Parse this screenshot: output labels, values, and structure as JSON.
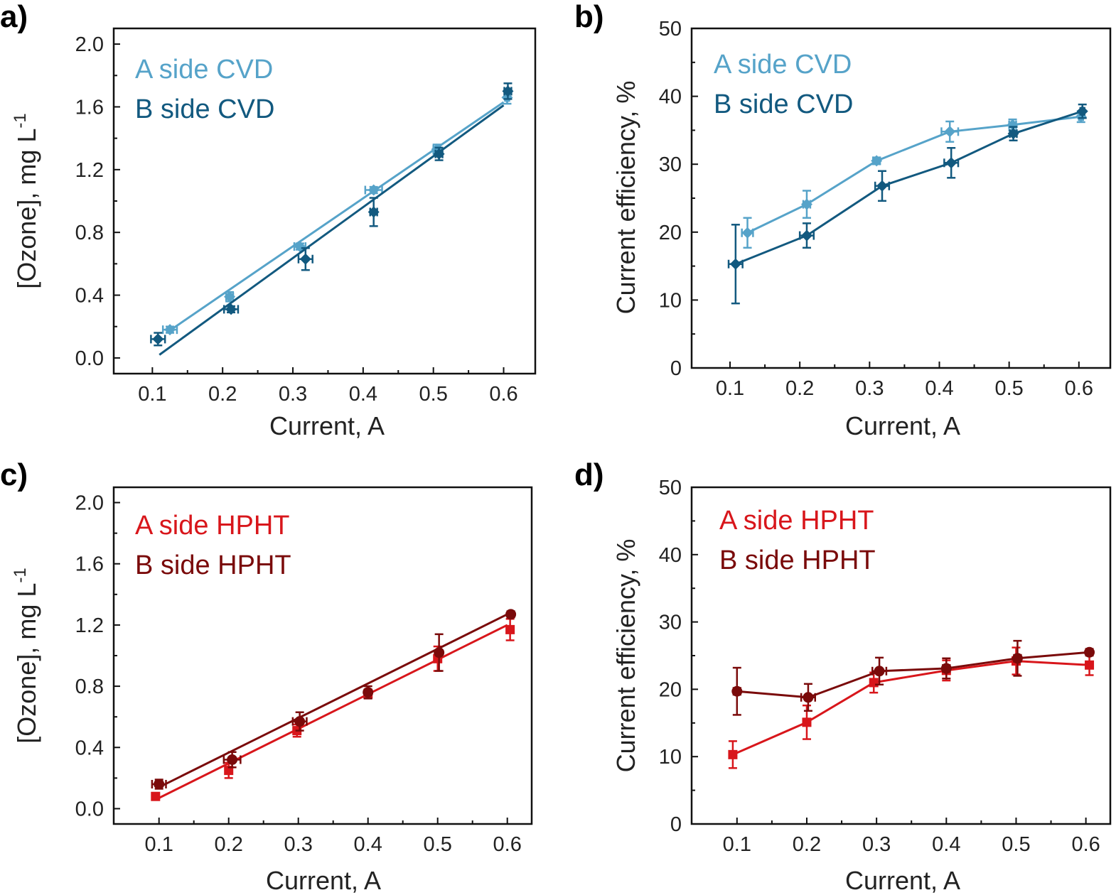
{
  "chart_data": [
    {
      "panel": "a)",
      "type": "line",
      "xlabel": "Current, A",
      "ylabel": "[Ozone], mg L",
      "ylabel_sup": "-1",
      "xlim": [
        0.045,
        0.645
      ],
      "ylim": [
        -0.1,
        2.1
      ],
      "xticks": [
        "0.1",
        "0.2",
        "0.3",
        "0.4",
        "0.5",
        "0.6"
      ],
      "yticks": [
        "0.0",
        "0.4",
        "0.8",
        "1.2",
        "1.6",
        "2.0"
      ],
      "legend": "top-left",
      "series": [
        {
          "name": "A side CVD",
          "color": "#56a3c9",
          "marker": "diamond",
          "connect": "fit",
          "fit": [
            [
              0.12,
              0.16
            ],
            [
              0.6,
              1.63
            ]
          ],
          "x": [
            0.125,
            0.21,
            0.31,
            0.415,
            0.505,
            0.605
          ],
          "y": [
            0.18,
            0.39,
            0.71,
            1.07,
            1.33,
            1.66
          ],
          "xerr": [
            0.01,
            0.005,
            0.008,
            0.012,
            0.005,
            0.003
          ],
          "yerr": [
            0.02,
            0.03,
            0.02,
            0.02,
            0.03,
            0.04
          ]
        },
        {
          "name": "B side CVD",
          "color": "#12597f",
          "marker": "diamond",
          "connect": "fit",
          "fit": [
            [
              0.11,
              0.02
            ],
            [
              0.6,
              1.61
            ]
          ],
          "x": [
            0.108,
            0.212,
            0.318,
            0.415,
            0.508,
            0.606
          ],
          "y": [
            0.12,
            0.31,
            0.63,
            0.93,
            1.3,
            1.7
          ],
          "xerr": [
            0.01,
            0.01,
            0.01,
            0.005,
            0.005,
            0.005
          ],
          "yerr": [
            0.04,
            0.02,
            0.07,
            0.09,
            0.04,
            0.05
          ]
        }
      ]
    },
    {
      "panel": "b)",
      "type": "line",
      "xlabel": "Current, A",
      "ylabel": "Current efficiency, %",
      "ylabel_sup": "",
      "xlim": [
        0.045,
        0.645
      ],
      "ylim": [
        0,
        50
      ],
      "xticks": [
        "0.1",
        "0.2",
        "0.3",
        "0.4",
        "0.5",
        "0.6"
      ],
      "yticks": [
        "0",
        "10",
        "20",
        "30",
        "40",
        "50"
      ],
      "legend": "top-left",
      "series": [
        {
          "name": "A side CVD",
          "color": "#56a3c9",
          "marker": "diamond",
          "connect": "points",
          "x": [
            0.125,
            0.21,
            0.31,
            0.415,
            0.505,
            0.603
          ],
          "y": [
            19.9,
            24.1,
            30.5,
            34.8,
            35.8,
            37.0
          ],
          "xerr": [
            0.008,
            0.005,
            0.005,
            0.012,
            0.005,
            0.003
          ],
          "yerr": [
            2.2,
            2.0,
            0.5,
            1.5,
            0.8,
            0.8
          ]
        },
        {
          "name": "B side CVD",
          "color": "#12597f",
          "marker": "diamond",
          "connect": "points",
          "x": [
            0.108,
            0.21,
            0.318,
            0.417,
            0.506,
            0.605
          ],
          "y": [
            15.3,
            19.5,
            26.8,
            30.2,
            34.5,
            37.8
          ],
          "xerr": [
            0.01,
            0.01,
            0.01,
            0.01,
            0.005,
            0.003
          ],
          "yerr": [
            5.8,
            1.8,
            2.2,
            2.2,
            1.0,
            1.0
          ]
        }
      ]
    },
    {
      "panel": "c)",
      "type": "line",
      "xlabel": "Current, A",
      "ylabel": "[Ozone], mg L",
      "ylabel_sup": "-1",
      "xlim": [
        0.035,
        0.635
      ],
      "ylim": [
        -0.1,
        2.1
      ],
      "xticks": [
        "0.1",
        "0.2",
        "0.3",
        "0.4",
        "0.5",
        "0.6"
      ],
      "yticks": [
        "0.0",
        "0.4",
        "0.8",
        "1.2",
        "1.6",
        "2.0"
      ],
      "legend": "top-left",
      "series": [
        {
          "name": "A side HPHT",
          "color": "#d8161b",
          "marker": "square",
          "connect": "fit",
          "fit": [
            [
              0.1,
              0.07
            ],
            [
              0.6,
              1.2
            ]
          ],
          "x": [
            0.095,
            0.2,
            0.298,
            0.4,
            0.5,
            0.604
          ],
          "y": [
            0.08,
            0.25,
            0.51,
            0.75,
            0.98,
            1.17
          ],
          "xerr": [
            0.003,
            0.003,
            0.005,
            0.005,
            0.003,
            0.003
          ],
          "yerr": [
            0.02,
            0.05,
            0.04,
            0.03,
            0.08,
            0.07
          ]
        },
        {
          "name": "B side HPHT",
          "color": "#7a0a0a",
          "marker": "circle",
          "connect": "fit",
          "fit": [
            [
              0.1,
              0.14
            ],
            [
              0.6,
              1.27
            ]
          ],
          "x": [
            0.1,
            0.205,
            0.302,
            0.4,
            0.502,
            0.605
          ],
          "y": [
            0.16,
            0.32,
            0.57,
            0.76,
            1.02,
            1.27
          ],
          "xerr": [
            0.01,
            0.012,
            0.01,
            0.003,
            0.003,
            0.003
          ],
          "yerr": [
            0.03,
            0.05,
            0.06,
            0.04,
            0.12,
            0.02
          ]
        }
      ]
    },
    {
      "panel": "d)",
      "type": "line",
      "xlabel": "Current, A",
      "ylabel": "Current efficiency, %",
      "ylabel_sup": "",
      "xlim": [
        0.035,
        0.635
      ],
      "ylim": [
        0,
        50
      ],
      "xticks": [
        "0.1",
        "0.2",
        "0.3",
        "0.4",
        "0.5",
        "0.6"
      ],
      "yticks": [
        "0",
        "10",
        "20",
        "30",
        "40",
        "50"
      ],
      "legend": "top-left",
      "series": [
        {
          "name": "A side HPHT",
          "color": "#d8161b",
          "marker": "square",
          "connect": "points",
          "x": [
            0.094,
            0.2,
            0.296,
            0.4,
            0.5,
            0.605
          ],
          "y": [
            10.3,
            15.1,
            21.0,
            22.8,
            24.2,
            23.6
          ],
          "xerr": [
            0.003,
            0.003,
            0.005,
            0.005,
            0.005,
            0.003
          ],
          "yerr": [
            2.0,
            2.5,
            1.5,
            1.5,
            2.0,
            1.5
          ]
        },
        {
          "name": "B side HPHT",
          "color": "#7a0a0a",
          "marker": "circle",
          "connect": "points",
          "x": [
            0.1,
            0.202,
            0.304,
            0.4,
            0.502,
            0.605
          ],
          "y": [
            19.7,
            18.8,
            22.7,
            23.1,
            24.6,
            25.5
          ],
          "xerr": [
            0.005,
            0.01,
            0.01,
            0.005,
            0.005,
            0.003
          ],
          "yerr": [
            3.5,
            2.0,
            2.0,
            1.5,
            2.6,
            0.5
          ]
        }
      ]
    }
  ]
}
